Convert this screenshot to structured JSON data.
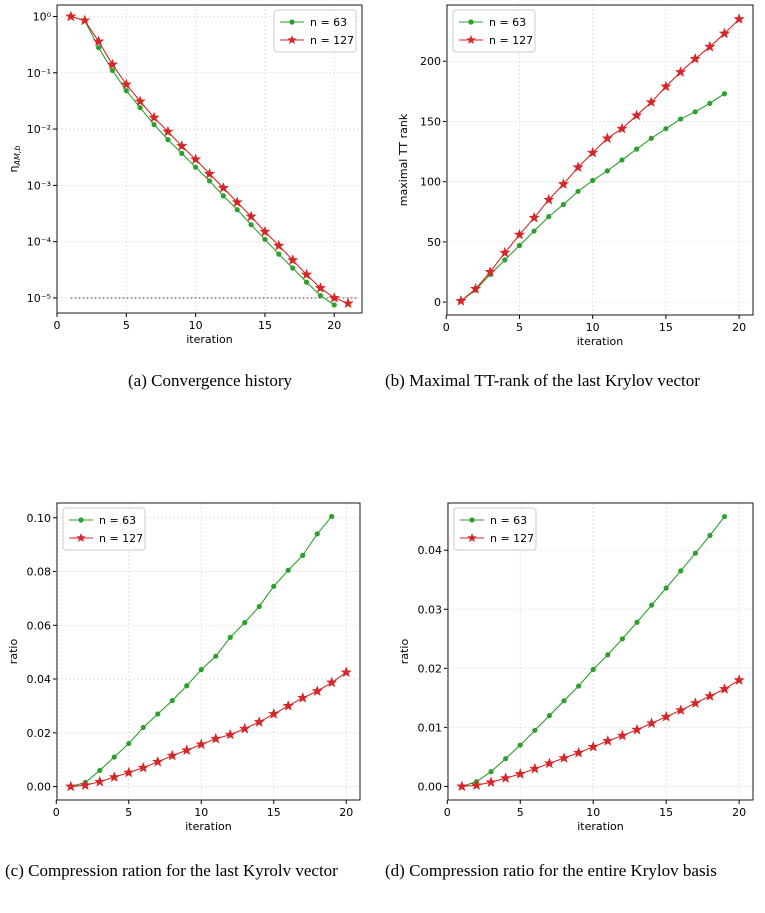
{
  "chart_data": [
    {
      "type": "line",
      "caption": "(a) Convergence history",
      "xlabel": "iteration",
      "ylabel": "η",
      "ylabel_subscript": "AM,b",
      "yscale": "log",
      "grid": true,
      "legend": "upper right",
      "hline": 1e-05,
      "xlim": [
        0,
        22
      ],
      "xticks": [
        0,
        5,
        10,
        15,
        20
      ],
      "ylim": [
        5.4e-06,
        1.6
      ],
      "yticks": [
        {
          "value": 1,
          "label": "10⁰"
        },
        {
          "value": 0.1,
          "label": "10⁻¹"
        },
        {
          "value": 0.01,
          "label": "10⁻²"
        },
        {
          "value": 0.001,
          "label": "10⁻³"
        },
        {
          "value": 0.0001,
          "label": "10⁻⁴"
        },
        {
          "value": 1e-05,
          "label": "10⁻⁵"
        }
      ],
      "series": [
        {
          "name": "n = 63",
          "color": "#2ca02c",
          "marker": "circle",
          "x": [
            1,
            2,
            3,
            4,
            5,
            6,
            7,
            8,
            9,
            10,
            11,
            12,
            13,
            14,
            15,
            16,
            17,
            18,
            19,
            20
          ],
          "values": [
            1,
            0.85,
            0.28,
            0.11,
            0.048,
            0.024,
            0.012,
            0.0065,
            0.0037,
            0.0021,
            0.0012,
            0.00065,
            0.00037,
            0.0002,
            0.00011,
            6e-05,
            3.4e-05,
            1.9e-05,
            1.1e-05,
            7.5e-06
          ]
        },
        {
          "name": "n = 127",
          "color": "#d62728",
          "marker": "star",
          "x": [
            1,
            2,
            3,
            4,
            5,
            6,
            7,
            8,
            9,
            10,
            11,
            12,
            13,
            14,
            15,
            16,
            17,
            18,
            19,
            20,
            21
          ],
          "values": [
            1,
            0.85,
            0.36,
            0.14,
            0.062,
            0.031,
            0.016,
            0.009,
            0.005,
            0.0029,
            0.0016,
            0.0009,
            0.0005,
            0.00028,
            0.00015,
            8.5e-05,
            4.7e-05,
            2.6e-05,
            1.5e-05,
            1e-05,
            8e-06
          ]
        }
      ]
    },
    {
      "type": "line",
      "caption": "(b) Maximal TT-rank of the last Krylov vector",
      "xlabel": "iteration",
      "ylabel": "maximal TT rank",
      "grid": true,
      "legend": "upper left",
      "xlim": [
        0.05,
        20.95
      ],
      "xticks": [
        0,
        5,
        10,
        15,
        20
      ],
      "ylim": [
        -10.7,
        246.7
      ],
      "yticks": [
        0,
        50,
        100,
        150,
        200
      ],
      "series": [
        {
          "name": "n = 63",
          "color": "#2ca02c",
          "marker": "circle",
          "x": [
            1,
            2,
            3,
            4,
            5,
            6,
            7,
            8,
            9,
            10,
            11,
            12,
            13,
            14,
            15,
            16,
            17,
            18,
            19
          ],
          "values": [
            1,
            10,
            23,
            35,
            47,
            59,
            71,
            81,
            92,
            101,
            109,
            118,
            127,
            136,
            144,
            152,
            158,
            165,
            173
          ]
        },
        {
          "name": "n = 127",
          "color": "#d62728",
          "marker": "star",
          "x": [
            1,
            2,
            3,
            4,
            5,
            6,
            7,
            8,
            9,
            10,
            11,
            12,
            13,
            14,
            15,
            16,
            17,
            18,
            19,
            20
          ],
          "values": [
            1,
            11,
            25,
            41,
            56,
            70,
            85,
            98,
            112,
            124,
            136,
            144,
            155,
            166,
            179,
            191,
            202,
            212,
            223,
            235
          ]
        }
      ]
    },
    {
      "type": "line",
      "caption": "(c) Compression ration for the last Kyrolv vector",
      "xlabel": "iteration",
      "ylabel": "ratio",
      "grid": true,
      "legend": "upper left",
      "xlim": [
        0.05,
        20.95
      ],
      "xticks": [
        0,
        5,
        10,
        15,
        20
      ],
      "ylim": [
        -0.005,
        0.1055
      ],
      "yticks": [
        {
          "value": 0,
          "label": "0.00"
        },
        {
          "value": 0.02,
          "label": "0.02"
        },
        {
          "value": 0.04,
          "label": "0.04"
        },
        {
          "value": 0.06,
          "label": "0.06"
        },
        {
          "value": 0.08,
          "label": "0.08"
        },
        {
          "value": 0.1,
          "label": "0.10"
        }
      ],
      "series": [
        {
          "name": "n = 63",
          "color": "#2ca02c",
          "marker": "circle",
          "x": [
            1,
            2,
            3,
            4,
            5,
            6,
            7,
            8,
            9,
            10,
            11,
            12,
            13,
            14,
            15,
            16,
            17,
            18,
            19
          ],
          "values": [
            0,
            0.0015,
            0.006,
            0.011,
            0.016,
            0.022,
            0.027,
            0.032,
            0.0375,
            0.0435,
            0.0485,
            0.0555,
            0.061,
            0.067,
            0.0745,
            0.0805,
            0.086,
            0.094,
            0.1005
          ]
        },
        {
          "name": "n = 127",
          "color": "#d62728",
          "marker": "star",
          "x": [
            1,
            2,
            3,
            4,
            5,
            6,
            7,
            8,
            9,
            10,
            11,
            12,
            13,
            14,
            15,
            16,
            17,
            18,
            19,
            20
          ],
          "values": [
            0,
            0.0005,
            0.0018,
            0.0035,
            0.0052,
            0.007,
            0.0092,
            0.0115,
            0.0135,
            0.0157,
            0.0178,
            0.0193,
            0.0215,
            0.024,
            0.027,
            0.03,
            0.033,
            0.0355,
            0.0387,
            0.0425
          ]
        }
      ]
    },
    {
      "type": "line",
      "caption": "(d) Compression ratio for the entire Krylov basis",
      "xlabel": "iteration",
      "ylabel": "ratio",
      "grid": true,
      "legend": "upper left",
      "xlim": [
        0.05,
        20.95
      ],
      "xticks": [
        0,
        5,
        10,
        15,
        20
      ],
      "ylim": [
        -0.0023,
        0.048
      ],
      "yticks": [
        {
          "value": 0,
          "label": "0.00"
        },
        {
          "value": 0.01,
          "label": "0.01"
        },
        {
          "value": 0.02,
          "label": "0.02"
        },
        {
          "value": 0.03,
          "label": "0.03"
        },
        {
          "value": 0.04,
          "label": "0.04"
        }
      ],
      "series": [
        {
          "name": "n = 63",
          "color": "#2ca02c",
          "marker": "circle",
          "x": [
            1,
            2,
            3,
            4,
            5,
            6,
            7,
            8,
            9,
            10,
            11,
            12,
            13,
            14,
            15,
            16,
            17,
            18,
            19
          ],
          "values": [
            0,
            0.0008,
            0.0025,
            0.0047,
            0.007,
            0.0095,
            0.012,
            0.0145,
            0.017,
            0.0198,
            0.0223,
            0.025,
            0.0278,
            0.0307,
            0.0336,
            0.0365,
            0.0395,
            0.0425,
            0.0457
          ]
        },
        {
          "name": "n = 127",
          "color": "#d62728",
          "marker": "star",
          "x": [
            1,
            2,
            3,
            4,
            5,
            6,
            7,
            8,
            9,
            10,
            11,
            12,
            13,
            14,
            15,
            16,
            17,
            18,
            19,
            20
          ],
          "values": [
            0,
            0.0002,
            0.0007,
            0.0014,
            0.0021,
            0.003,
            0.0039,
            0.0048,
            0.0057,
            0.0067,
            0.0077,
            0.0086,
            0.0096,
            0.0107,
            0.0118,
            0.0129,
            0.0141,
            0.0153,
            0.0165,
            0.018
          ]
        }
      ]
    }
  ]
}
